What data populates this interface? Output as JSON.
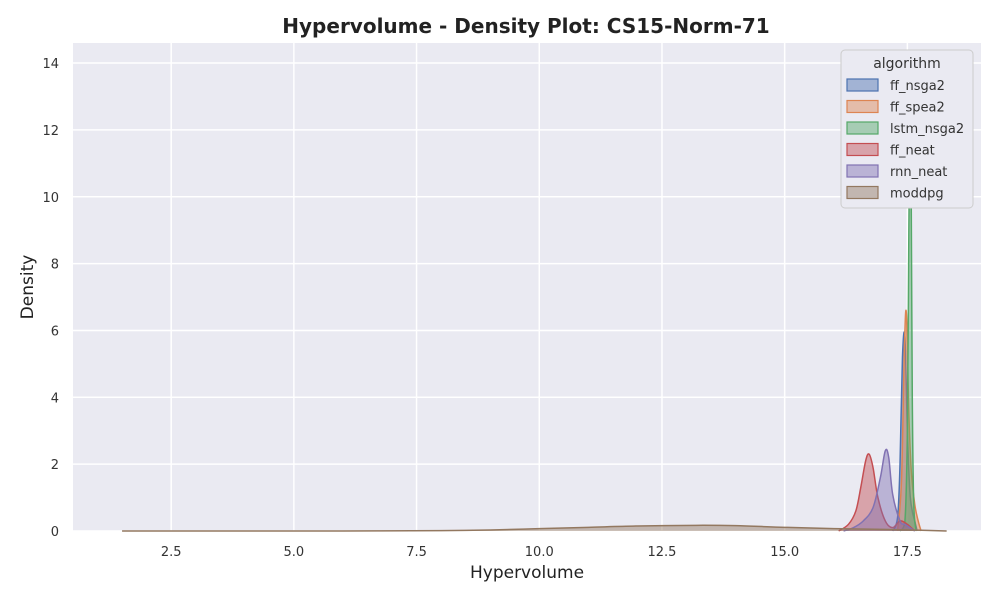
{
  "chart_data": {
    "type": "area",
    "title": "Hypervolume - Density Plot: CS15-Norm-71",
    "xlabel": "Hypervolume",
    "ylabel": "Density",
    "xlim": [
      0.5,
      19.0
    ],
    "ylim": [
      0,
      14.6
    ],
    "xticks": [
      2.5,
      5.0,
      7.5,
      10.0,
      12.5,
      15.0,
      17.5
    ],
    "xtick_labels": [
      "2.5",
      "5.0",
      "7.5",
      "10.0",
      "12.5",
      "15.0",
      "17.5"
    ],
    "yticks": [
      0,
      2,
      4,
      6,
      8,
      10,
      12,
      14
    ],
    "ytick_labels": [
      "0",
      "2",
      "4",
      "6",
      "8",
      "10",
      "12",
      "14"
    ],
    "grid": true,
    "legend": {
      "title": "algorithm",
      "placement": "top-right"
    },
    "series": [
      {
        "name": "ff_nsga2",
        "color": "#4c72b0",
        "x": [
          17.2,
          17.3,
          17.35,
          17.4,
          17.45,
          17.5,
          17.55,
          17.6,
          17.65,
          17.7
        ],
        "y": [
          0.0,
          0.4,
          2.0,
          5.2,
          5.8,
          3.0,
          1.2,
          0.6,
          0.3,
          0.0
        ]
      },
      {
        "name": "ff_spea2",
        "color": "#dd8452",
        "x": [
          17.3,
          17.38,
          17.44,
          17.48,
          17.53,
          17.58,
          17.65,
          17.72,
          17.78
        ],
        "y": [
          0.0,
          1.5,
          5.5,
          6.5,
          3.5,
          1.8,
          0.8,
          0.3,
          0.0
        ]
      },
      {
        "name": "lstm_nsga2",
        "color": "#55a868",
        "x": [
          17.35,
          17.45,
          17.5,
          17.53,
          17.56,
          17.58,
          17.6,
          17.63,
          17.68
        ],
        "y": [
          0.0,
          0.3,
          3.0,
          9.0,
          11.8,
          9.5,
          4.0,
          0.8,
          0.0
        ]
      },
      {
        "name": "ff_neat",
        "color": "#c44e52",
        "x": [
          16.1,
          16.3,
          16.45,
          16.55,
          16.65,
          16.72,
          16.8,
          16.9,
          17.05,
          17.2,
          17.35,
          17.5,
          17.65
        ],
        "y": [
          0.0,
          0.2,
          0.6,
          1.3,
          2.1,
          2.3,
          1.9,
          1.0,
          0.3,
          0.1,
          0.3,
          0.2,
          0.0
        ]
      },
      {
        "name": "rnn_neat",
        "color": "#8172b2",
        "x": [
          16.2,
          16.4,
          16.6,
          16.8,
          16.95,
          17.05,
          17.12,
          17.2,
          17.35,
          17.45,
          17.55,
          17.65
        ],
        "y": [
          0.0,
          0.1,
          0.3,
          0.7,
          1.6,
          2.4,
          2.2,
          1.1,
          0.3,
          0.2,
          0.1,
          0.0
        ]
      },
      {
        "name": "moddpg",
        "color": "#937860",
        "x": [
          1.5,
          4.0,
          6.0,
          8.0,
          9.0,
          10.0,
          11.0,
          12.0,
          13.2,
          14.0,
          15.0,
          16.0,
          17.0,
          17.6,
          18.3
        ],
        "y": [
          0.0,
          0.0,
          0.0,
          0.01,
          0.03,
          0.07,
          0.11,
          0.15,
          0.17,
          0.16,
          0.11,
          0.07,
          0.05,
          0.03,
          0.0
        ]
      }
    ]
  }
}
